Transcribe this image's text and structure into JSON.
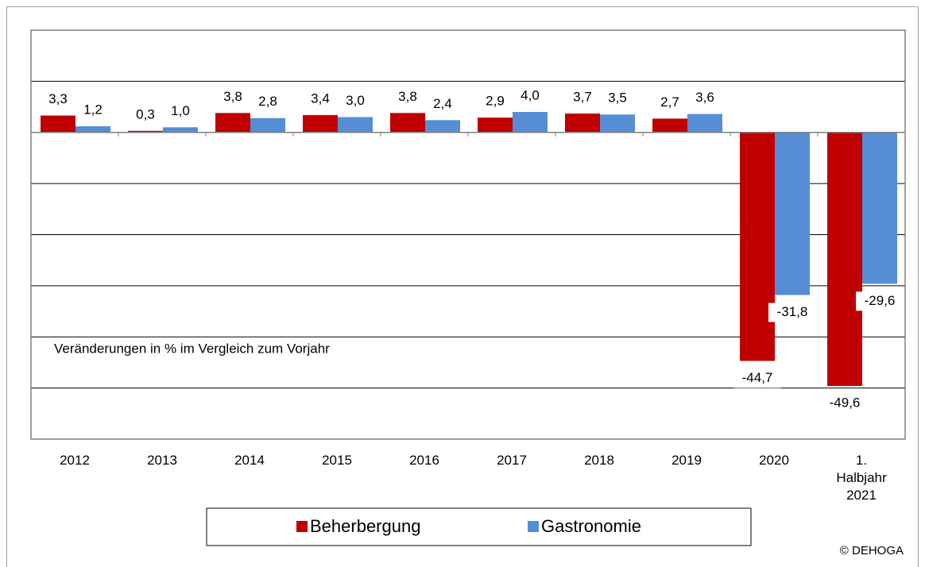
{
  "chart_data": {
    "type": "bar",
    "annotation": "Veränderungen in % im Vergleich zum Vorjahr",
    "source": "© DEHOGA",
    "categories": [
      "2012",
      "2013",
      "2014",
      "2015",
      "2016",
      "2017",
      "2018",
      "2019",
      "2020",
      "1. Halbjahr 2021"
    ],
    "series": [
      {
        "name": "Beherbergung",
        "color": "#c00000",
        "values": [
          3.3,
          0.3,
          3.8,
          3.4,
          3.8,
          2.9,
          3.7,
          2.7,
          -44.7,
          -49.6
        ],
        "value_labels": [
          "3,3",
          "0,3",
          "3,8",
          "3,4",
          "3,8",
          "2,9",
          "3,7",
          "2,7",
          "-44,7",
          "-49,6"
        ]
      },
      {
        "name": "Gastronomie",
        "color": "#558ed5",
        "values": [
          1.2,
          1.0,
          2.8,
          3.0,
          2.4,
          4.0,
          3.5,
          3.6,
          -31.8,
          -29.6
        ],
        "value_labels": [
          "1,2",
          "1,0",
          "2,8",
          "3,0",
          "2,4",
          "4,0",
          "3,5",
          "3,6",
          "-31,8",
          "-29,6"
        ]
      }
    ],
    "ylim": [
      -60,
      20
    ],
    "yticks": [
      -60,
      -50,
      -40,
      -30,
      -20,
      -10,
      0,
      10,
      20
    ],
    "grid": true,
    "legend": "bottom"
  }
}
